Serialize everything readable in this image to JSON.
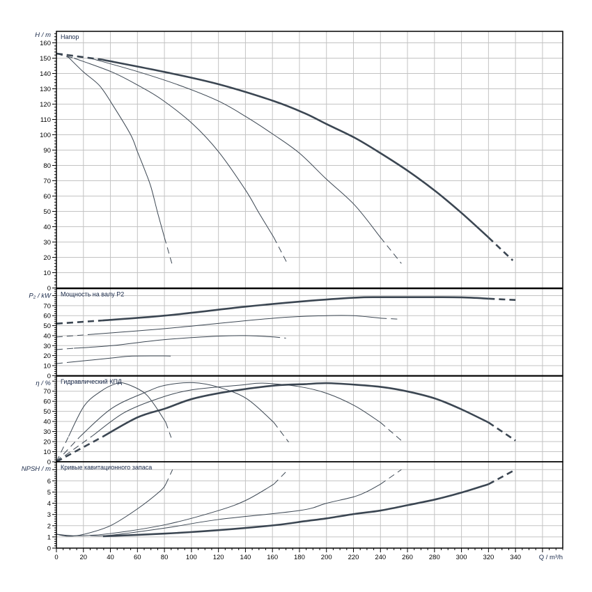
{
  "colors": {
    "curve": "#3b4652",
    "grid": "#c3c3c3",
    "frame": "#000000"
  },
  "x_axis": {
    "label": "Q / m³/h",
    "xlim": [
      0,
      375
    ],
    "ticks": [
      0,
      20,
      40,
      60,
      80,
      100,
      120,
      140,
      160,
      180,
      200,
      220,
      240,
      260,
      280,
      300,
      320,
      340
    ],
    "grid_step": 20
  },
  "chart_data": [
    {
      "type": "line",
      "title": "Напор",
      "ylabel": "H / m",
      "ylim": [
        0,
        167.5
      ],
      "yticks": [
        0,
        10,
        20,
        30,
        40,
        50,
        60,
        70,
        80,
        90,
        100,
        110,
        120,
        130,
        140,
        150,
        160
      ],
      "grid": true,
      "series": [
        {
          "name": "curve-1",
          "weight": "thin",
          "lead": [
            [
              0,
              153
            ],
            [
              9,
              150.5
            ]
          ],
          "main": [
            [
              9,
              150.5
            ],
            [
              20,
              141
            ],
            [
              32,
              132
            ],
            [
              42,
              119
            ],
            [
              55,
              100
            ],
            [
              60,
              89
            ],
            [
              65,
              78
            ],
            [
              70,
              66
            ],
            [
              75,
              49
            ],
            [
              80,
              33
            ]
          ],
          "tail": [
            [
              80,
              33
            ],
            [
              85.5,
              16
            ]
          ]
        },
        {
          "name": "curve-2",
          "weight": "thin",
          "lead": [
            [
              0,
              153
            ],
            [
              13,
              150
            ]
          ],
          "main": [
            [
              13,
              150
            ],
            [
              41,
              141
            ],
            [
              61,
              132
            ],
            [
              78,
              123
            ],
            [
              101,
              107
            ],
            [
              120,
              89
            ],
            [
              140,
              64
            ],
            [
              150,
              49
            ],
            [
              161,
              33
            ]
          ],
          "tail": [
            [
              161,
              33
            ],
            [
              171,
              16
            ]
          ]
        },
        {
          "name": "curve-3",
          "weight": "thin",
          "lead": [
            [
              0,
              153
            ],
            [
              25,
              150
            ]
          ],
          "main": [
            [
              25,
              150
            ],
            [
              61,
              141
            ],
            [
              92,
              132
            ],
            [
              120,
              122
            ],
            [
              140,
              112
            ],
            [
              161,
              100
            ],
            [
              180,
              88
            ],
            [
              200,
              71
            ],
            [
              221,
              54
            ],
            [
              240,
              33
            ]
          ],
          "tail": [
            [
              240,
              33
            ],
            [
              255.5,
              16
            ]
          ]
        },
        {
          "name": "curve-4",
          "weight": "thick",
          "lead": [
            [
              0,
              153
            ],
            [
              34,
              149
            ]
          ],
          "main": [
            [
              34,
              149
            ],
            [
              80,
              141
            ],
            [
              120,
              133
            ],
            [
              161,
              122
            ],
            [
              184,
              114
            ],
            [
              200,
              107
            ],
            [
              221,
              98
            ],
            [
              240,
              88
            ],
            [
              261,
              76
            ],
            [
              281,
              63
            ],
            [
              300,
              49
            ],
            [
              320,
              33
            ]
          ],
          "tail": [
            [
              320,
              33
            ],
            [
              338,
              18
            ]
          ]
        }
      ]
    },
    {
      "type": "line",
      "title": "Мощность на валу P2",
      "ylabel": "P₂ / kW",
      "ylim": [
        0,
        87
      ],
      "yticks": [
        0,
        10,
        20,
        30,
        40,
        50,
        60,
        70
      ],
      "grid": true,
      "series": [
        {
          "name": "curve-1",
          "weight": "thin",
          "lead": [
            [
              0,
              12
            ],
            [
              9,
              13.3
            ]
          ],
          "main": [
            [
              9,
              13.3
            ],
            [
              41,
              17.6
            ],
            [
              55,
              19.5
            ],
            [
              80,
              19.7
            ]
          ],
          "tail": [
            [
              80,
              19.7
            ],
            [
              85,
              19.5
            ]
          ]
        },
        {
          "name": "curve-2",
          "weight": "thin",
          "lead": [
            [
              0,
              26
            ],
            [
              13,
              27.4
            ]
          ],
          "main": [
            [
              13,
              27.4
            ],
            [
              41,
              30
            ],
            [
              80,
              36
            ],
            [
              120,
              39.5
            ],
            [
              140,
              40
            ],
            [
              161,
              38.7
            ]
          ],
          "tail": [
            [
              161,
              38.7
            ],
            [
              170,
              37.5
            ]
          ]
        },
        {
          "name": "curve-3",
          "weight": "thin",
          "lead": [
            [
              0,
              38.6
            ],
            [
              25,
              41.2
            ]
          ],
          "main": [
            [
              25,
              41.2
            ],
            [
              80,
              47
            ],
            [
              161,
              57.5
            ],
            [
              200,
              60
            ],
            [
              220,
              60
            ],
            [
              240,
              57.5
            ]
          ],
          "tail": [
            [
              240,
              57.5
            ],
            [
              253,
              56.5
            ]
          ]
        },
        {
          "name": "curve-4",
          "weight": "thick",
          "lead": [
            [
              0,
              52
            ],
            [
              34,
              55.2
            ]
          ],
          "main": [
            [
              34,
              55.2
            ],
            [
              80,
              60
            ],
            [
              140,
              69
            ],
            [
              184,
              74.5
            ],
            [
              221,
              78
            ],
            [
              240,
              78.5
            ],
            [
              270,
              78.5
            ],
            [
              300,
              78.3
            ],
            [
              320,
              77
            ]
          ],
          "tail": [
            [
              320,
              77
            ],
            [
              340,
              75.7
            ]
          ]
        }
      ]
    },
    {
      "type": "line",
      "title": "Гидравлический КПД",
      "ylabel": "η / %",
      "ylim": [
        0,
        85
      ],
      "yticks": [
        0,
        10,
        20,
        30,
        40,
        50,
        60,
        70
      ],
      "grid": true,
      "series": [
        {
          "name": "curve-1",
          "weight": "thin",
          "lead": [
            [
              0,
              0
            ],
            [
              9,
              25
            ]
          ],
          "main": [
            [
              9,
              25
            ],
            [
              20.6,
              55.5
            ],
            [
              33,
              70
            ],
            [
              43,
              77
            ],
            [
              50,
              78
            ],
            [
              64,
              69.5
            ],
            [
              72,
              57.6
            ],
            [
              81,
              39
            ]
          ],
          "tail": [
            [
              81,
              39
            ],
            [
              85,
              24
            ]
          ]
        },
        {
          "name": "curve-2",
          "weight": "thin",
          "lead": [
            [
              0,
              0
            ],
            [
              17.5,
              25
            ]
          ],
          "main": [
            [
              17.5,
              25
            ],
            [
              41,
              53
            ],
            [
              67,
              69.5
            ],
            [
              81,
              76
            ],
            [
              101,
              78.5
            ],
            [
              120,
              74
            ],
            [
              141,
              62.5
            ],
            [
              161,
              39
            ]
          ],
          "tail": [
            [
              161,
              39
            ],
            [
              172,
              19.5
            ]
          ]
        },
        {
          "name": "curve-3",
          "weight": "thin",
          "lead": [
            [
              0,
              0
            ],
            [
              27,
              26
            ]
          ],
          "main": [
            [
              27,
              26
            ],
            [
              50,
              48.6
            ],
            [
              76,
              63
            ],
            [
              101,
              71.5
            ],
            [
              136,
              76
            ],
            [
              153,
              78
            ],
            [
              180,
              74.5
            ],
            [
              200,
              68
            ],
            [
              221,
              55.5
            ],
            [
              240,
              39
            ]
          ],
          "tail": [
            [
              240,
              39
            ],
            [
              255.5,
              21
            ]
          ]
        },
        {
          "name": "curve-4",
          "weight": "thick",
          "lead": [
            [
              0,
              0
            ],
            [
              34.5,
              25
            ]
          ],
          "main": [
            [
              34.5,
              25
            ],
            [
              60,
              44
            ],
            [
              81,
              53
            ],
            [
              101,
              62.5
            ],
            [
              129,
              70
            ],
            [
              162,
              75.7
            ],
            [
              184,
              77
            ],
            [
              200,
              78
            ],
            [
              221,
              76.5
            ],
            [
              242,
              74
            ],
            [
              261,
              69.5
            ],
            [
              281,
              62.5
            ],
            [
              300,
              52
            ],
            [
              320,
              39
            ]
          ],
          "tail": [
            [
              320,
              39
            ],
            [
              340,
              21
            ]
          ]
        }
      ]
    },
    {
      "type": "line",
      "title": "Кривые кавитационного запаса",
      "ylabel": "NPSH / m",
      "ylim": [
        0,
        7.7
      ],
      "yticks": [
        0,
        1,
        2,
        3,
        4,
        5,
        6
      ],
      "grid": true,
      "series": [
        {
          "name": "curve-1",
          "weight": "thin",
          "lead": [],
          "main": [
            [
              0,
              1.24
            ],
            [
              9,
              1.06
            ],
            [
              20.6,
              1.24
            ],
            [
              40,
              2
            ],
            [
              60,
              3.5
            ],
            [
              77,
              5.1
            ],
            [
              81,
              5.7
            ]
          ],
          "tail": [
            [
              81,
              5.7
            ],
            [
              86,
              7
            ]
          ]
        },
        {
          "name": "curve-2",
          "weight": "thin",
          "lead": [],
          "main": [
            [
              0,
              1.24
            ],
            [
              15.5,
              1.1
            ],
            [
              40,
              1.3
            ],
            [
              81,
              2.1
            ],
            [
              120,
              3.35
            ],
            [
              141,
              4.3
            ],
            [
              161,
              5.7
            ]
          ],
          "tail": [
            [
              161,
              5.7
            ],
            [
              170,
              6.8
            ]
          ]
        },
        {
          "name": "curve-3",
          "weight": "thin",
          "lead": [],
          "main": [
            [
              25,
              1.12
            ],
            [
              40,
              1.15
            ],
            [
              81,
              1.8
            ],
            [
              120,
              2.55
            ],
            [
              180,
              3.35
            ],
            [
              200,
              4.0
            ],
            [
              221,
              4.6
            ],
            [
              231,
              5.1
            ],
            [
              240,
              5.7
            ]
          ],
          "tail": [
            [
              240,
              5.7
            ],
            [
              255.5,
              7
            ]
          ]
        },
        {
          "name": "curve-4",
          "weight": "thick",
          "lead": [],
          "main": [
            [
              34.5,
              1.06
            ],
            [
              81,
              1.3
            ],
            [
              120,
              1.6
            ],
            [
              162,
              2.05
            ],
            [
              184,
              2.4
            ],
            [
              200,
              2.65
            ],
            [
              221,
              3.05
            ],
            [
              240,
              3.35
            ],
            [
              261,
              3.85
            ],
            [
              281,
              4.35
            ],
            [
              300,
              4.95
            ],
            [
              320,
              5.7
            ]
          ],
          "tail": [
            [
              320,
              5.7
            ],
            [
              340,
              7
            ]
          ]
        }
      ]
    }
  ]
}
